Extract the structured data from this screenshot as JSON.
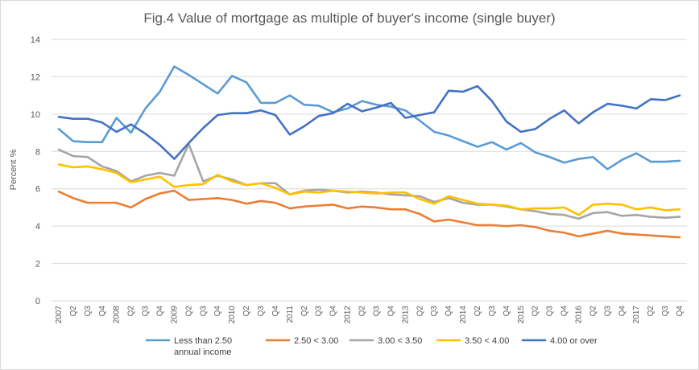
{
  "chart_data": {
    "type": "line",
    "title": "Fig.4  Value of mortgage as multiple of buyer's income (single buyer)",
    "ylabel": "Percent %",
    "xlabel": "",
    "ylim": [
      0,
      14
    ],
    "yticks": [
      "0",
      "2",
      "4",
      "6",
      "8",
      "10",
      "12",
      "14"
    ],
    "grid": "horizontal",
    "legend_position": "bottom",
    "categories": [
      "2007",
      "Q2",
      "Q3",
      "Q4",
      "2008",
      "Q2",
      "Q3",
      "Q4",
      "2009",
      "Q2",
      "Q3",
      "Q4",
      "2010",
      "Q2",
      "Q3",
      "Q4",
      "2011",
      "Q2",
      "Q3",
      "Q4",
      "2012",
      "Q2",
      "Q3",
      "Q4",
      "2013",
      "Q2",
      "Q3",
      "Q4",
      "2014",
      "Q2",
      "Q3",
      "Q4",
      "2015",
      "Q2",
      "Q3",
      "Q4",
      "2016",
      "Q2",
      "Q3",
      "Q4",
      "2017",
      "Q2",
      "Q3",
      "Q4"
    ],
    "series": [
      {
        "name": "Less than 2.50 annual income",
        "legend_lines": [
          "Less than 2.50",
          "annual income"
        ],
        "color": "#5b9bd5",
        "values": [
          9.2,
          8.55,
          8.5,
          8.5,
          9.8,
          9.0,
          10.3,
          11.2,
          12.55,
          12.1,
          11.6,
          11.1,
          12.05,
          11.7,
          10.6,
          10.6,
          11.0,
          10.5,
          10.45,
          10.1,
          10.3,
          10.7,
          10.5,
          10.4,
          10.2,
          9.65,
          9.05,
          8.85,
          8.55,
          8.25,
          8.5,
          8.1,
          8.45,
          7.95,
          7.7,
          7.4,
          7.6,
          7.7,
          7.05,
          7.55,
          7.9,
          7.45,
          7.45,
          7.5
        ]
      },
      {
        "name": "2.50 < 3.00",
        "color": "#ed7d31",
        "values": [
          5.85,
          5.5,
          5.25,
          5.25,
          5.25,
          5.0,
          5.45,
          5.75,
          5.9,
          5.4,
          5.45,
          5.5,
          5.4,
          5.2,
          5.35,
          5.25,
          4.95,
          5.05,
          5.1,
          5.15,
          4.95,
          5.05,
          5.0,
          4.9,
          4.9,
          4.65,
          4.25,
          4.35,
          4.2,
          4.05,
          4.05,
          4.0,
          4.05,
          3.95,
          3.75,
          3.65,
          3.45,
          3.6,
          3.75,
          3.6,
          3.55,
          3.5,
          3.45,
          3.4
        ]
      },
      {
        "name": "3.00 < 3.50",
        "color": "#a5a5a5",
        "values": [
          8.1,
          7.75,
          7.7,
          7.2,
          6.95,
          6.4,
          6.7,
          6.85,
          6.7,
          8.4,
          6.4,
          6.7,
          6.5,
          6.2,
          6.3,
          6.3,
          5.7,
          5.9,
          5.95,
          5.9,
          5.8,
          5.85,
          5.8,
          5.7,
          5.65,
          5.6,
          5.3,
          5.5,
          5.25,
          5.15,
          5.15,
          5.05,
          4.9,
          4.8,
          4.65,
          4.6,
          4.4,
          4.7,
          4.75,
          4.55,
          4.6,
          4.5,
          4.45,
          4.5
        ]
      },
      {
        "name": "3.50 < 4.00",
        "color": "#ffc000",
        "values": [
          7.3,
          7.15,
          7.2,
          7.05,
          6.85,
          6.35,
          6.5,
          6.65,
          6.1,
          6.2,
          6.25,
          6.75,
          6.4,
          6.2,
          6.3,
          6.05,
          5.7,
          5.85,
          5.8,
          5.9,
          5.85,
          5.8,
          5.75,
          5.8,
          5.8,
          5.45,
          5.2,
          5.6,
          5.4,
          5.2,
          5.15,
          5.1,
          4.9,
          4.95,
          4.95,
          5.0,
          4.6,
          5.15,
          5.2,
          5.15,
          4.9,
          5.0,
          4.85,
          4.9
        ]
      },
      {
        "name": "4.00 or over",
        "color": "#4472c4",
        "values": [
          9.85,
          9.75,
          9.75,
          9.55,
          9.05,
          9.45,
          8.95,
          8.35,
          7.6,
          8.45,
          9.25,
          9.95,
          10.05,
          10.05,
          10.2,
          9.95,
          8.9,
          9.35,
          9.9,
          10.05,
          10.55,
          10.15,
          10.35,
          10.6,
          9.8,
          9.95,
          10.1,
          11.25,
          11.2,
          11.5,
          10.7,
          9.6,
          9.05,
          9.2,
          9.75,
          10.2,
          9.5,
          10.1,
          10.55,
          10.45,
          10.3,
          10.8,
          10.75,
          11.0
        ]
      }
    ]
  }
}
